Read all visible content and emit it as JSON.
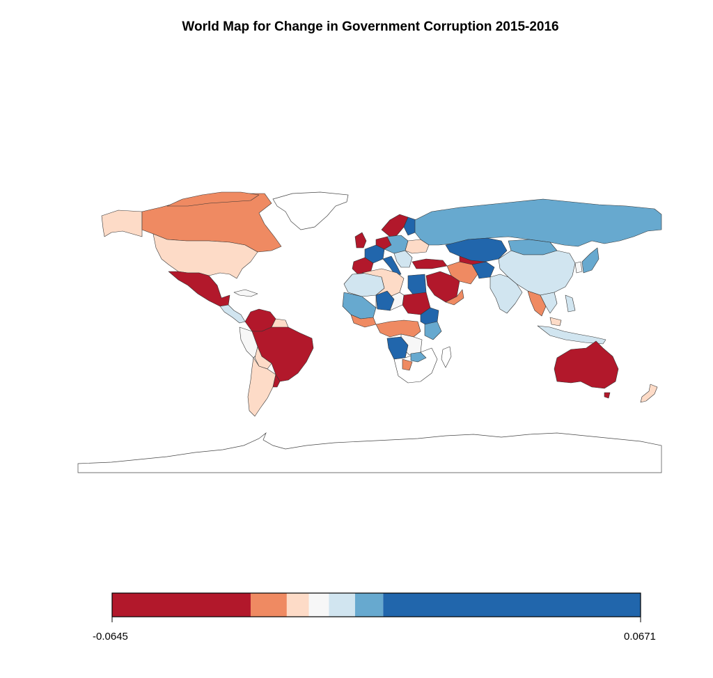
{
  "title": "World Map for Change in Government Corruption 2015-2016",
  "legend": {
    "min_label": "-0.0645",
    "max_label": "0.0671",
    "bins": [
      {
        "color": "#b2182b",
        "from": -0.0645,
        "to": -0.03
      },
      {
        "color": "#ef8a62",
        "from": -0.03,
        "to": -0.021
      },
      {
        "color": "#fddbc7",
        "from": -0.021,
        "to": -0.0155
      },
      {
        "color": "#f7f7f7",
        "from": -0.0155,
        "to": -0.0105
      },
      {
        "color": "#d1e5f0",
        "from": -0.0105,
        "to": -0.004
      },
      {
        "color": "#67a9cf",
        "from": -0.004,
        "to": 0.003
      },
      {
        "color": "#2166ac",
        "from": 0.003,
        "to": 0.0671
      }
    ]
  },
  "colors": {
    "no_data": "#ffffff",
    "border": "#333333"
  }
}
